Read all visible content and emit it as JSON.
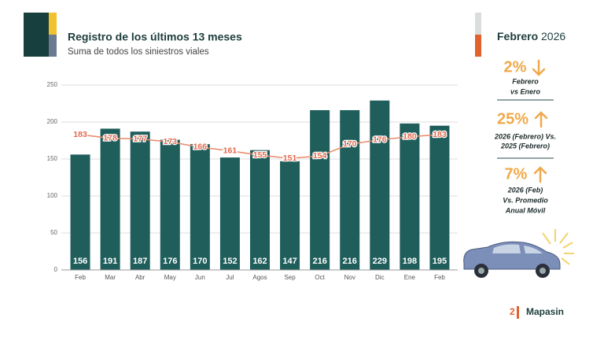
{
  "chart_data": {
    "type": "bar",
    "title": "Registro de los últimos 13 meses",
    "subtitle": "Suma de todos los siniestros viales",
    "categories": [
      "Feb",
      "Mar",
      "Abr",
      "May",
      "Jun",
      "Jul",
      "Agos",
      "Sep",
      "Oct",
      "Nov",
      "Dic",
      "Ene",
      "Feb"
    ],
    "series": [
      {
        "color": "#1f5e5b",
        "values": [
          156,
          191,
          187,
          176,
          170,
          152,
          162,
          147,
          216,
          216,
          229,
          198,
          195
        ]
      },
      {
        "type": "line",
        "color": "#e8896a",
        "values": [
          183,
          178,
          177,
          173,
          166,
          161,
          155,
          151,
          154,
          170,
          176,
          180,
          183
        ]
      }
    ],
    "ylim": [
      0,
      250
    ],
    "yticks": [
      0,
      50,
      100,
      150,
      200,
      250
    ],
    "grid": true
  },
  "side_panel": {
    "month": "Febrero",
    "year": "2026",
    "stats": [
      {
        "value": "2%",
        "direction": "down",
        "lines": [
          "Febrero",
          "vs Enero"
        ]
      },
      {
        "value": "25%",
        "direction": "up",
        "lines": [
          "2026 (Febrero) Vs.",
          "2025 (Febrero)"
        ]
      },
      {
        "value": "7%",
        "direction": "up",
        "lines": [
          "2026 (Feb)",
          "Vs. Promedio",
          "Anual Móvil"
        ]
      }
    ]
  },
  "footer": {
    "page": "2",
    "brand": "Mapasin"
  }
}
